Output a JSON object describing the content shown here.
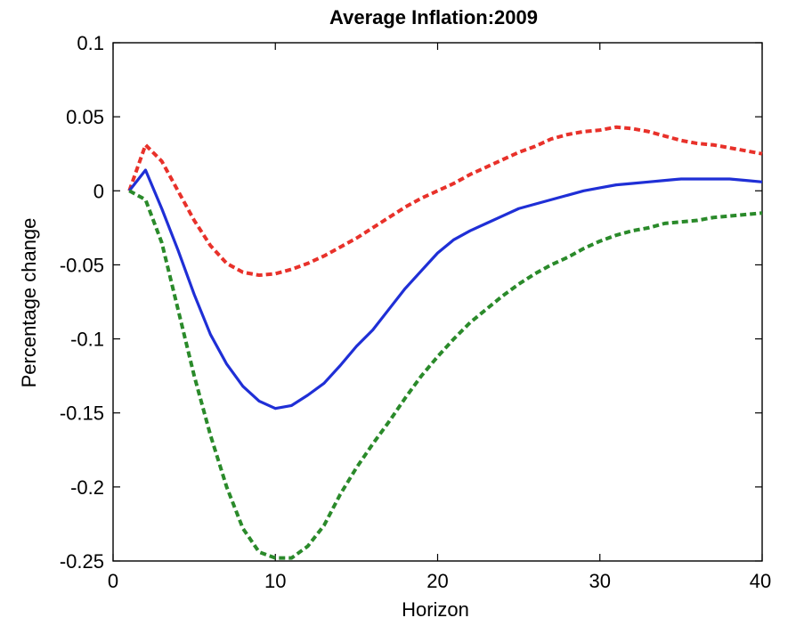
{
  "chart_data": {
    "type": "line",
    "title": "Average Inflation:2009",
    "xlabel": "Horizon",
    "ylabel": "Percentage change",
    "xlim": [
      0,
      40
    ],
    "ylim": [
      -0.25,
      0.1
    ],
    "xticks": [
      0,
      10,
      20,
      30,
      40
    ],
    "yticks": [
      0.1,
      0.05,
      0,
      -0.05,
      -0.1,
      -0.15,
      -0.2,
      -0.25
    ],
    "xtick_labels": [
      "0",
      "10",
      "20",
      "30",
      "40"
    ],
    "ytick_labels": [
      "0.1",
      "0.05",
      "0",
      "-0.05",
      "-0.1",
      "-0.15",
      "-0.2",
      "-0.25"
    ],
    "grid": false,
    "x": [
      1,
      2,
      3,
      4,
      5,
      6,
      7,
      8,
      9,
      10,
      11,
      12,
      13,
      14,
      15,
      16,
      17,
      18,
      19,
      20,
      21,
      22,
      23,
      24,
      25,
      26,
      27,
      28,
      29,
      30,
      31,
      32,
      33,
      34,
      35,
      36,
      37,
      38,
      39,
      40
    ],
    "series": [
      {
        "color": "#e8312a",
        "style": "dashed",
        "values": [
          0.0,
          0.031,
          0.02,
          0.0,
          -0.02,
          -0.037,
          -0.049,
          -0.055,
          -0.057,
          -0.056,
          -0.053,
          -0.049,
          -0.044,
          -0.038,
          -0.032,
          -0.025,
          -0.018,
          -0.011,
          -0.005,
          0.0,
          0.005,
          0.011,
          0.016,
          0.021,
          0.026,
          0.03,
          0.035,
          0.038,
          0.04,
          0.041,
          0.043,
          0.042,
          0.04,
          0.037,
          0.034,
          0.032,
          0.031,
          0.029,
          0.027,
          0.025
        ]
      },
      {
        "color": "#1f2fd6",
        "style": "solid",
        "values": [
          0.0,
          0.014,
          -0.012,
          -0.04,
          -0.07,
          -0.097,
          -0.117,
          -0.132,
          -0.142,
          -0.147,
          -0.145,
          -0.138,
          -0.13,
          -0.118,
          -0.105,
          -0.094,
          -0.08,
          -0.066,
          -0.054,
          -0.042,
          -0.033,
          -0.027,
          -0.022,
          -0.017,
          -0.012,
          -0.009,
          -0.006,
          -0.003,
          0.0,
          0.002,
          0.004,
          0.005,
          0.006,
          0.007,
          0.008,
          0.008,
          0.008,
          0.008,
          0.007,
          0.006
        ]
      },
      {
        "color": "#2a8a2a",
        "style": "dashed",
        "values": [
          0.0,
          -0.006,
          -0.035,
          -0.08,
          -0.125,
          -0.165,
          -0.2,
          -0.228,
          -0.244,
          -0.248,
          -0.248,
          -0.24,
          -0.226,
          -0.205,
          -0.187,
          -0.171,
          -0.156,
          -0.14,
          -0.125,
          -0.112,
          -0.1,
          -0.089,
          -0.08,
          -0.071,
          -0.063,
          -0.056,
          -0.05,
          -0.045,
          -0.039,
          -0.034,
          -0.03,
          -0.027,
          -0.025,
          -0.022,
          -0.021,
          -0.02,
          -0.018,
          -0.017,
          -0.016,
          -0.015
        ]
      }
    ]
  }
}
